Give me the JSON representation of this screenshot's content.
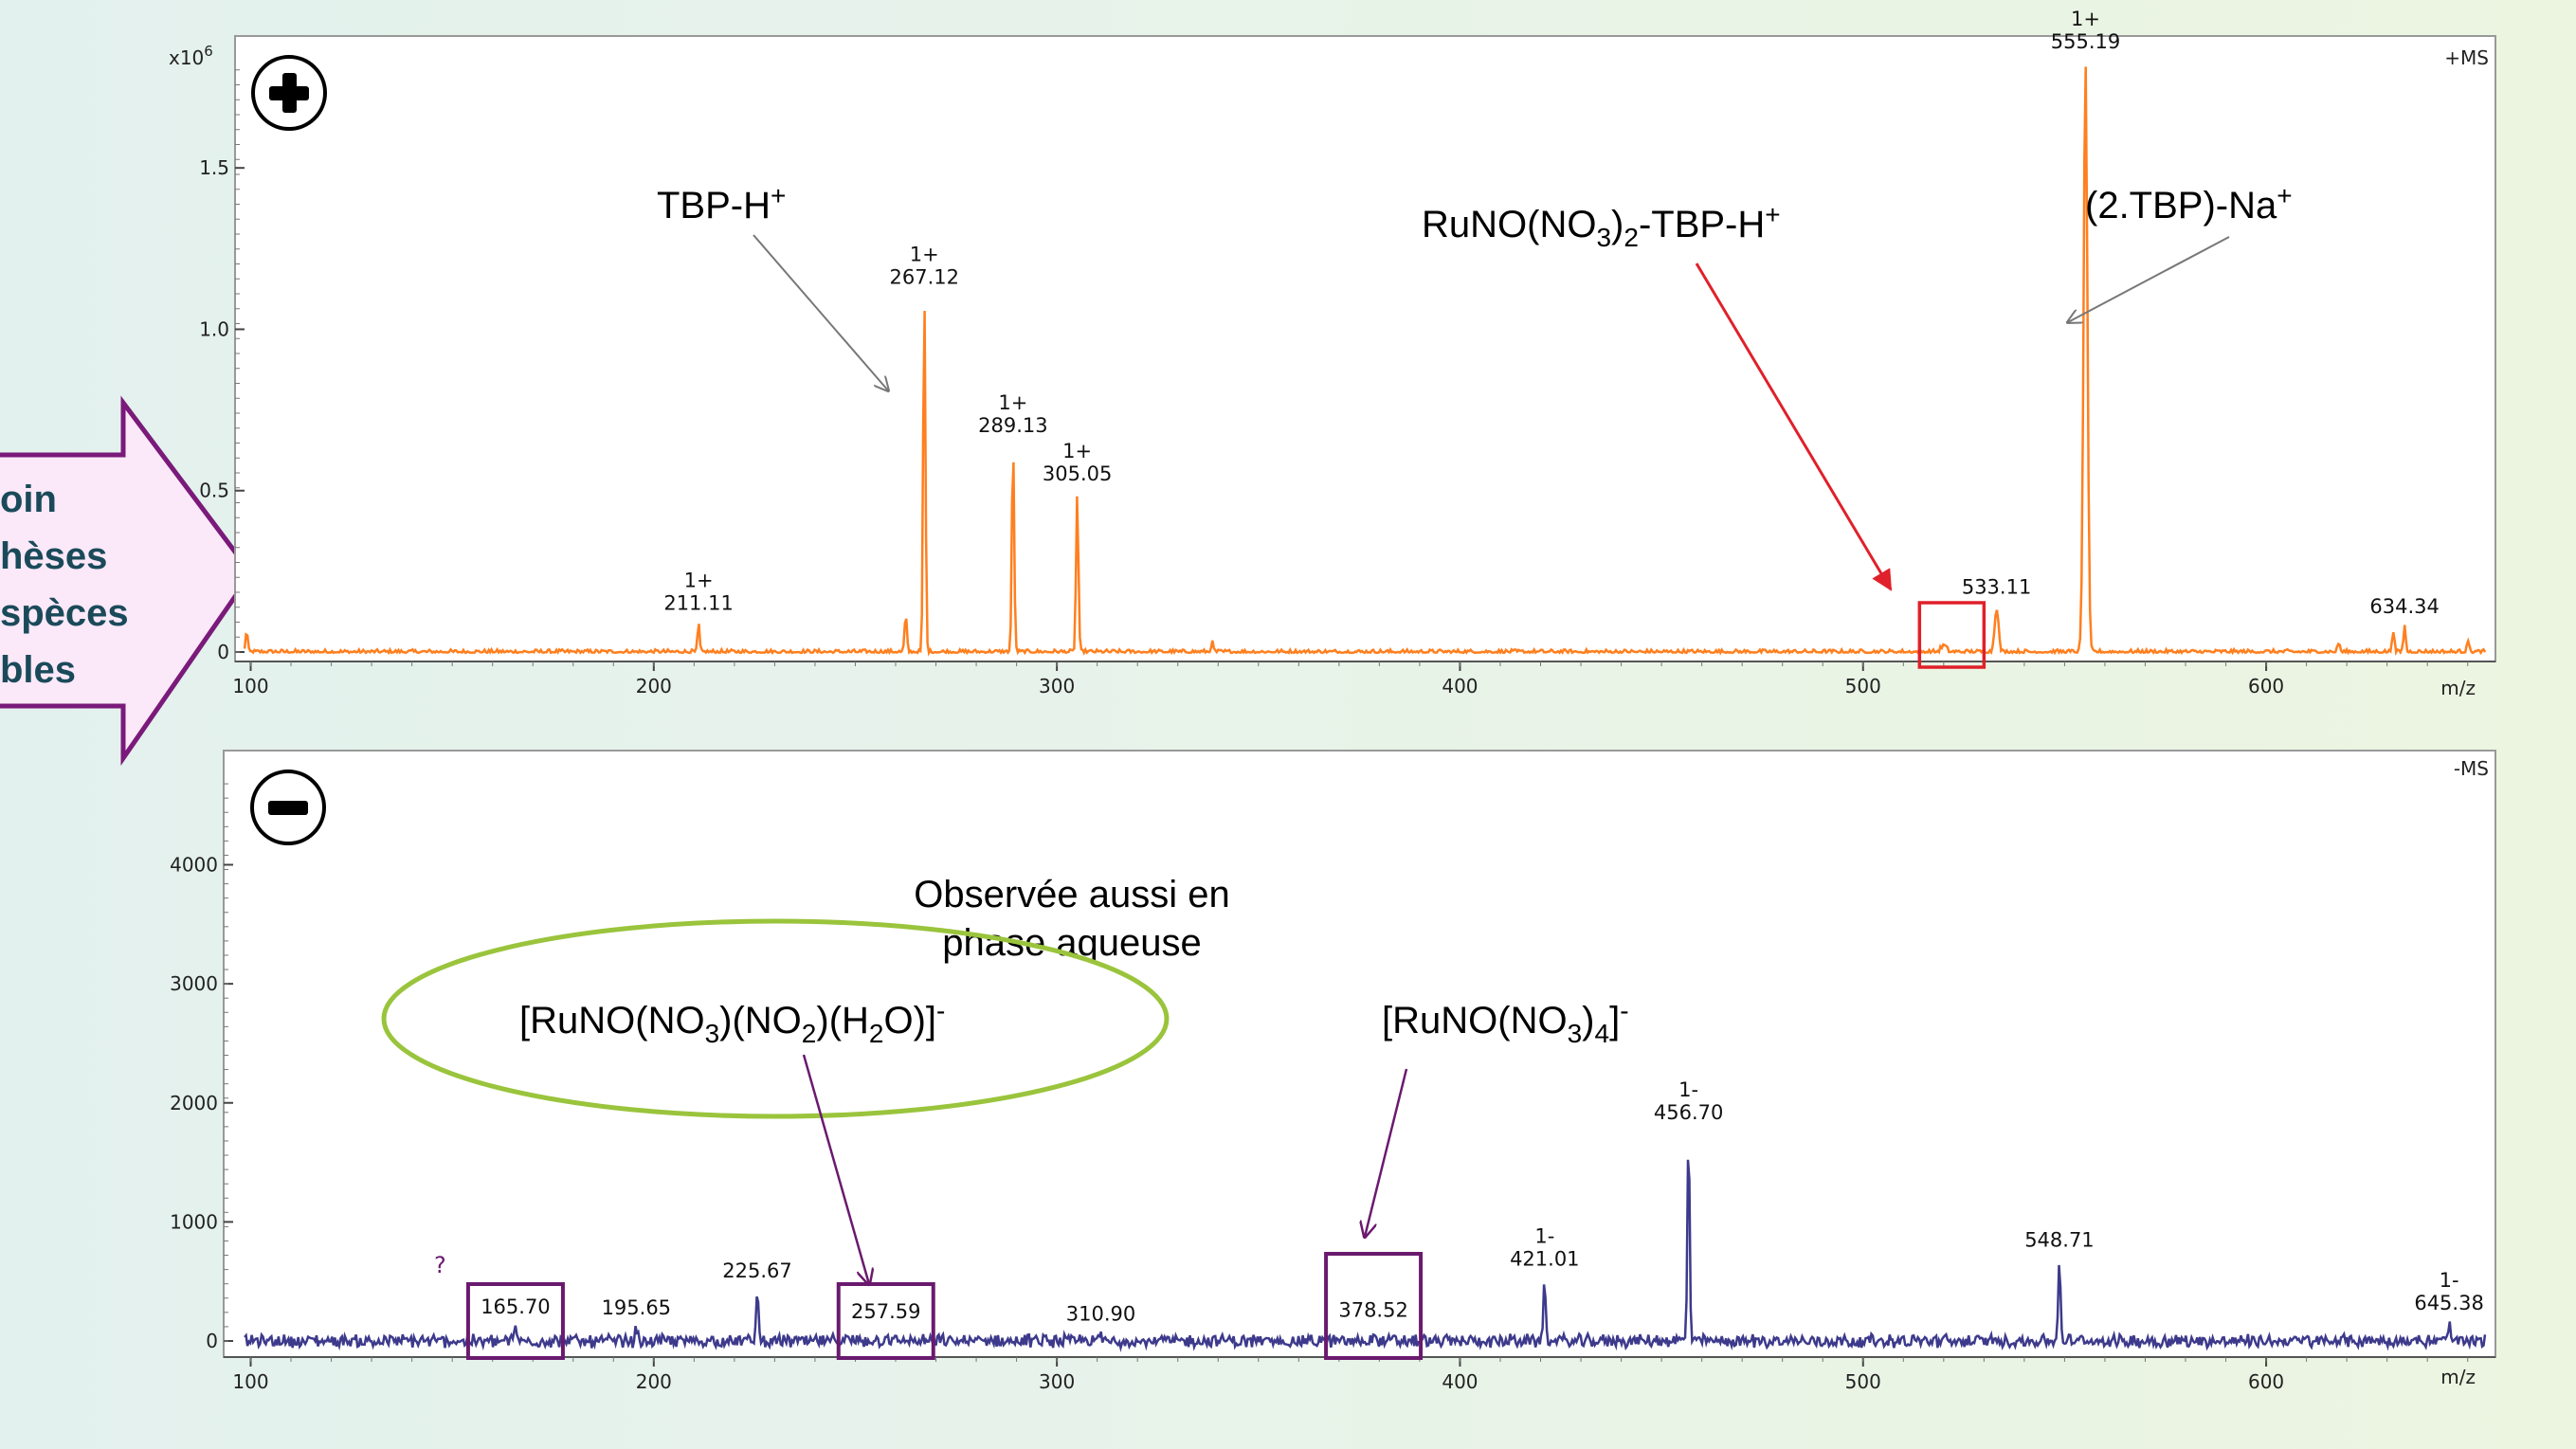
{
  "side_callout": {
    "lines": [
      "oin",
      "hèses",
      "spèces",
      "bles"
    ],
    "color": "#7a1a7a",
    "fill": "#fbe8f8"
  },
  "chart_data": [
    {
      "type": "line",
      "mode_label": "+MS",
      "mode_symbol": "plus",
      "color": "#ff7f1f",
      "x_unit": "m/z",
      "y_multiplier_label": "x10",
      "y_multiplier_exp": "6",
      "xlim": [
        98,
        655
      ],
      "ylim": [
        0,
        1.85
      ],
      "xticks": [
        "100",
        "200",
        "300",
        "400",
        "500",
        "600"
      ],
      "yticks": [
        {
          "value": 0,
          "label": "0"
        },
        {
          "value": 0.5,
          "label": "0.5"
        },
        {
          "value": 1.0,
          "label": "1.0"
        },
        {
          "value": 1.5,
          "label": "1.5"
        }
      ],
      "noise": 0.008,
      "peaks": [
        {
          "x": 99,
          "y": 0.07,
          "w": 0.5
        },
        {
          "x": 211.11,
          "y": 0.09,
          "w": 0.5
        },
        {
          "x": 262.5,
          "y": 0.11,
          "w": 0.6
        },
        {
          "x": 267.12,
          "y": 1.1,
          "w": 0.6
        },
        {
          "x": 289.13,
          "y": 0.64,
          "w": 0.6
        },
        {
          "x": 305.05,
          "y": 0.49,
          "w": 0.6
        },
        {
          "x": 338.5,
          "y": 0.03,
          "w": 0.6
        },
        {
          "x": 520,
          "y": 0.02,
          "w": 1.5
        },
        {
          "x": 533.11,
          "y": 0.14,
          "w": 1.0
        },
        {
          "x": 555.19,
          "y": 1.83,
          "w": 1.0
        },
        {
          "x": 618,
          "y": 0.03,
          "w": 0.6
        },
        {
          "x": 631.5,
          "y": 0.07,
          "w": 0.6
        },
        {
          "x": 634.34,
          "y": 0.08,
          "w": 0.6
        },
        {
          "x": 650,
          "y": 0.04,
          "w": 0.6
        }
      ],
      "peak_labels": [
        {
          "x": 211.11,
          "y": 0.09,
          "charge": "1+",
          "value": "211.11"
        },
        {
          "x": 267.12,
          "y": 1.1,
          "charge": "1+",
          "value": "267.12"
        },
        {
          "x": 289.13,
          "y": 0.64,
          "charge": "1+",
          "value": "289.13"
        },
        {
          "x": 305.05,
          "y": 0.49,
          "charge": "1+",
          "value": "305.05"
        },
        {
          "x": 533.11,
          "y": 0.14,
          "charge": "",
          "value": "533.11"
        },
        {
          "x": 555.19,
          "y": 1.83,
          "charge": "1+",
          "value": "555.19"
        },
        {
          "x": 634.34,
          "y": 0.08,
          "charge": "",
          "value": "634.34"
        }
      ],
      "annotations": [
        {
          "text": "TBP-H⁺",
          "target": "peak 267.12"
        },
        {
          "text": "RuNO(NO3)2-TBP-H⁺",
          "target": "box near m/z 520"
        },
        {
          "text": "(2.TBP)-Na⁺",
          "target": "peak 555.19"
        }
      ],
      "highlight_box_xrange": [
        514,
        530
      ],
      "highlight_color": "#e0202a"
    },
    {
      "type": "line",
      "mode_label": "-MS",
      "mode_symbol": "minus",
      "color": "#3d3a8c",
      "x_unit": "m/z",
      "xlim": [
        98,
        655
      ],
      "ylim": [
        -100,
        4800
      ],
      "xticks": [
        "100",
        "200",
        "300",
        "400",
        "500",
        "600"
      ],
      "yticks": [
        {
          "value": 0,
          "label": "0"
        },
        {
          "value": 1000,
          "label": "1000"
        },
        {
          "value": 2000,
          "label": "2000"
        },
        {
          "value": 3000,
          "label": "3000"
        },
        {
          "value": 4000,
          "label": "4000"
        }
      ],
      "noise": 45,
      "peaks": [
        {
          "x": 165.7,
          "y": 120,
          "w": 0.6
        },
        {
          "x": 195.65,
          "y": 110,
          "w": 0.6
        },
        {
          "x": 225.67,
          "y": 420,
          "w": 0.6
        },
        {
          "x": 257.59,
          "y": 80,
          "w": 0.6
        },
        {
          "x": 310.9,
          "y": 60,
          "w": 0.6
        },
        {
          "x": 378.52,
          "y": 90,
          "w": 0.6
        },
        {
          "x": 421.01,
          "y": 520,
          "w": 0.6
        },
        {
          "x": 456.7,
          "y": 1750,
          "w": 0.6
        },
        {
          "x": 548.71,
          "y": 680,
          "w": 0.6
        },
        {
          "x": 645.38,
          "y": 150,
          "w": 0.6
        }
      ],
      "peak_labels": [
        {
          "x": 165.7,
          "y": 120,
          "charge": "",
          "value": "165.70"
        },
        {
          "x": 195.65,
          "y": 110,
          "charge": "",
          "value": "195.65"
        },
        {
          "x": 225.67,
          "y": 420,
          "charge": "",
          "value": "225.67"
        },
        {
          "x": 257.59,
          "y": 80,
          "charge": "",
          "value": "257.59"
        },
        {
          "x": 310.9,
          "y": 60,
          "charge": "",
          "value": "310.90"
        },
        {
          "x": 378.52,
          "y": 90,
          "charge": "",
          "value": "378.52"
        },
        {
          "x": 421.01,
          "y": 520,
          "charge": "1-",
          "value": "421.01"
        },
        {
          "x": 456.7,
          "y": 1750,
          "charge": "1-",
          "value": "456.70"
        },
        {
          "x": 548.71,
          "y": 680,
          "charge": "",
          "value": "548.71"
        },
        {
          "x": 645.38,
          "y": 150,
          "charge": "1-",
          "value": "645.38"
        }
      ],
      "question_mark": "?",
      "boxed_peaks": [
        165.7,
        257.59,
        378.52
      ],
      "box_color": "#6a1a6e",
      "annotations": [
        {
          "text": "[RuNO(NO3)(NO2)(H2O)]⁻",
          "target": "peak 257.59"
        },
        {
          "text": "[RuNO(NO3)4]⁻",
          "target": "peak 378.52"
        }
      ],
      "note_line1": "Observée aussi en",
      "note_line2": "phase aqueuse",
      "ellipse_color": "#9ac43c",
      "arrow_color": "#6a1a6e"
    }
  ]
}
